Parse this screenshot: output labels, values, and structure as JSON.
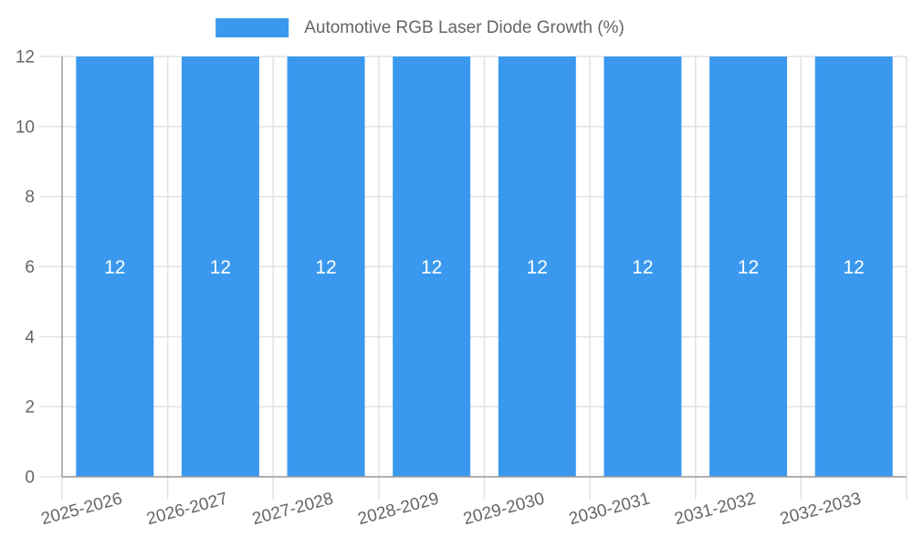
{
  "chart_data": {
    "type": "bar",
    "title": "Automotive RGB Laser Diode Growth (%)",
    "categories": [
      "2025-2026",
      "2026-2027",
      "2027-2028",
      "2028-2029",
      "2029-2030",
      "2030-2031",
      "2031-2032",
      "2032-2033"
    ],
    "values": [
      12,
      12,
      12,
      12,
      12,
      12,
      12,
      12
    ],
    "xlabel": "",
    "ylabel": "",
    "ylim": [
      0,
      12
    ],
    "yticks": [
      0,
      2,
      4,
      6,
      8,
      10,
      12
    ],
    "grid": true,
    "legend_position": "top",
    "x_label_rotation_deg": -15,
    "colors": {
      "bar": "#3a99ee",
      "grid": "#e2e2e2",
      "axis": "#9c9c9c",
      "tick_text": "#666666",
      "legend_text": "#666666",
      "bar_label": "#ffffff"
    }
  }
}
